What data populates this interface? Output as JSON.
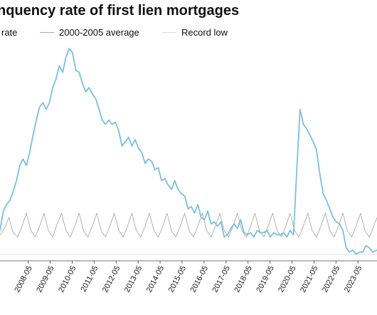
{
  "chart_data": {
    "type": "line",
    "title": "nquency rate of first lien mortgages",
    "xlabel": "",
    "ylabel": "",
    "x_ticks": [
      "2008-05",
      "2009-05",
      "2010-05",
      "2011-05",
      "2012-05",
      "2013-05",
      "2014-05",
      "2015-05",
      "2016-05",
      "2017-05",
      "2018-05",
      "2019-05",
      "2020-05",
      "2021-05",
      "2022-05",
      "2023-05"
    ],
    "x_range": [
      2007.05,
      2024.2
    ],
    "y_range": [
      0,
      100
    ],
    "grid": false,
    "legend_position": "top",
    "series": [
      {
        "name": "rate",
        "color": "#7bbfe0",
        "points": [
          [
            2007.05,
            14
          ],
          [
            2007.2,
            23
          ],
          [
            2007.35,
            26
          ],
          [
            2007.5,
            28
          ],
          [
            2007.65,
            32
          ],
          [
            2007.8,
            37
          ],
          [
            2007.95,
            44
          ],
          [
            2008.1,
            47
          ],
          [
            2008.25,
            44
          ],
          [
            2008.4,
            50
          ],
          [
            2008.55,
            58
          ],
          [
            2008.7,
            65
          ],
          [
            2008.85,
            71
          ],
          [
            2009.0,
            73
          ],
          [
            2009.15,
            70
          ],
          [
            2009.3,
            73
          ],
          [
            2009.45,
            80
          ],
          [
            2009.6,
            84
          ],
          [
            2009.75,
            90
          ],
          [
            2009.9,
            87
          ],
          [
            2010.05,
            94
          ],
          [
            2010.2,
            98
          ],
          [
            2010.35,
            96
          ],
          [
            2010.5,
            88
          ],
          [
            2010.65,
            87
          ],
          [
            2010.8,
            82
          ],
          [
            2010.95,
            78
          ],
          [
            2011.1,
            80
          ],
          [
            2011.25,
            77
          ],
          [
            2011.4,
            75
          ],
          [
            2011.55,
            70
          ],
          [
            2011.7,
            65
          ],
          [
            2011.85,
            63
          ],
          [
            2012.0,
            65
          ],
          [
            2012.15,
            63
          ],
          [
            2012.3,
            64
          ],
          [
            2012.45,
            60
          ],
          [
            2012.6,
            53
          ],
          [
            2012.75,
            55
          ],
          [
            2012.9,
            57
          ],
          [
            2013.05,
            53
          ],
          [
            2013.2,
            56
          ],
          [
            2013.35,
            52
          ],
          [
            2013.5,
            50
          ],
          [
            2013.65,
            45
          ],
          [
            2013.8,
            47
          ],
          [
            2013.95,
            46
          ],
          [
            2014.1,
            42
          ],
          [
            2014.25,
            43
          ],
          [
            2014.4,
            37
          ],
          [
            2014.55,
            38
          ],
          [
            2014.7,
            35
          ],
          [
            2014.85,
            33
          ],
          [
            2015.0,
            37
          ],
          [
            2015.15,
            33
          ],
          [
            2015.3,
            31
          ],
          [
            2015.45,
            30
          ],
          [
            2015.6,
            24
          ],
          [
            2015.75,
            25
          ],
          [
            2015.9,
            22
          ],
          [
            2016.05,
            26
          ],
          [
            2016.2,
            20
          ],
          [
            2016.35,
            19
          ],
          [
            2016.5,
            23
          ],
          [
            2016.65,
            17
          ],
          [
            2016.8,
            18
          ],
          [
            2016.95,
            16
          ],
          [
            2017.1,
            18
          ],
          [
            2017.25,
            11
          ],
          [
            2017.4,
            12
          ],
          [
            2017.55,
            15
          ],
          [
            2017.7,
            17
          ],
          [
            2017.85,
            15
          ],
          [
            2018.0,
            19
          ],
          [
            2018.15,
            13
          ],
          [
            2018.3,
            12
          ],
          [
            2018.45,
            13
          ],
          [
            2018.6,
            11
          ],
          [
            2018.75,
            14
          ],
          [
            2018.9,
            13
          ],
          [
            2019.05,
            13
          ],
          [
            2019.2,
            14
          ],
          [
            2019.35,
            11
          ],
          [
            2019.5,
            13
          ],
          [
            2019.65,
            12
          ],
          [
            2019.8,
            12
          ],
          [
            2019.95,
            13
          ],
          [
            2020.1,
            11
          ],
          [
            2020.25,
            14
          ],
          [
            2020.4,
            12
          ],
          [
            2020.55,
            42
          ],
          [
            2020.7,
            70
          ],
          [
            2020.85,
            63
          ],
          [
            2021.0,
            61
          ],
          [
            2021.15,
            58
          ],
          [
            2021.3,
            55
          ],
          [
            2021.45,
            51
          ],
          [
            2021.6,
            40
          ],
          [
            2021.75,
            31
          ],
          [
            2021.9,
            28
          ],
          [
            2022.05,
            24
          ],
          [
            2022.2,
            20
          ],
          [
            2022.35,
            18
          ],
          [
            2022.5,
            17
          ],
          [
            2022.65,
            14
          ],
          [
            2022.8,
            6
          ],
          [
            2022.95,
            4
          ],
          [
            2023.1,
            5
          ],
          [
            2023.25,
            3
          ],
          [
            2023.4,
            4
          ],
          [
            2023.55,
            4
          ],
          [
            2023.7,
            7
          ],
          [
            2023.85,
            6
          ],
          [
            2024.0,
            4
          ],
          [
            2024.2,
            5
          ]
        ]
      },
      {
        "name": "2000-2005 average",
        "color": "#aaaaaa",
        "points": [
          [
            2007.05,
            12
          ],
          [
            2007.25,
            15
          ],
          [
            2007.45,
            20
          ],
          [
            2007.65,
            13
          ],
          [
            2007.85,
            11
          ],
          [
            2008.05,
            16
          ],
          [
            2008.25,
            22
          ],
          [
            2008.45,
            14
          ],
          [
            2008.65,
            11
          ],
          [
            2008.85,
            16
          ],
          [
            2009.05,
            22
          ],
          [
            2009.25,
            14
          ],
          [
            2009.45,
            11
          ],
          [
            2009.65,
            17
          ],
          [
            2009.85,
            22
          ],
          [
            2010.05,
            14
          ],
          [
            2010.25,
            11
          ],
          [
            2010.45,
            16
          ],
          [
            2010.65,
            22
          ],
          [
            2010.85,
            14
          ],
          [
            2011.05,
            11
          ],
          [
            2011.25,
            16
          ],
          [
            2011.45,
            22
          ],
          [
            2011.65,
            14
          ],
          [
            2011.85,
            11
          ],
          [
            2012.05,
            16
          ],
          [
            2012.25,
            22
          ],
          [
            2012.45,
            14
          ],
          [
            2012.65,
            11
          ],
          [
            2012.85,
            16
          ],
          [
            2013.05,
            22
          ],
          [
            2013.25,
            14
          ],
          [
            2013.45,
            11
          ],
          [
            2013.65,
            16
          ],
          [
            2013.85,
            22
          ],
          [
            2014.05,
            14
          ],
          [
            2014.25,
            11
          ],
          [
            2014.45,
            16
          ],
          [
            2014.65,
            22
          ],
          [
            2014.85,
            14
          ],
          [
            2015.05,
            11
          ],
          [
            2015.25,
            16
          ],
          [
            2015.45,
            22
          ],
          [
            2015.65,
            14
          ],
          [
            2015.85,
            11
          ],
          [
            2016.05,
            16
          ],
          [
            2016.25,
            22
          ],
          [
            2016.45,
            14
          ],
          [
            2016.65,
            11
          ],
          [
            2016.85,
            16
          ],
          [
            2017.05,
            22
          ],
          [
            2017.25,
            14
          ],
          [
            2017.45,
            11
          ],
          [
            2017.65,
            16
          ],
          [
            2017.85,
            22
          ],
          [
            2018.05,
            14
          ],
          [
            2018.25,
            11
          ],
          [
            2018.45,
            16
          ],
          [
            2018.65,
            22
          ],
          [
            2018.85,
            14
          ],
          [
            2019.05,
            11
          ],
          [
            2019.25,
            16
          ],
          [
            2019.45,
            22
          ],
          [
            2019.65,
            14
          ],
          [
            2019.85,
            11
          ],
          [
            2020.05,
            16
          ],
          [
            2020.25,
            22
          ],
          [
            2020.45,
            14
          ],
          [
            2020.65,
            11
          ],
          [
            2020.85,
            16
          ],
          [
            2021.05,
            22
          ],
          [
            2021.25,
            14
          ],
          [
            2021.45,
            11
          ],
          [
            2021.65,
            16
          ],
          [
            2021.85,
            22
          ],
          [
            2022.05,
            14
          ],
          [
            2022.25,
            11
          ],
          [
            2022.45,
            16
          ],
          [
            2022.65,
            22
          ],
          [
            2022.85,
            14
          ],
          [
            2023.05,
            11
          ],
          [
            2023.25,
            16
          ],
          [
            2023.45,
            22
          ],
          [
            2023.65,
            14
          ],
          [
            2023.85,
            11
          ],
          [
            2024.05,
            16
          ],
          [
            2024.2,
            20
          ]
        ]
      },
      {
        "name": "Record low",
        "color": "#dddddd",
        "points": [
          [
            2007.05,
            3
          ],
          [
            2024.2,
            3
          ]
        ]
      }
    ]
  }
}
